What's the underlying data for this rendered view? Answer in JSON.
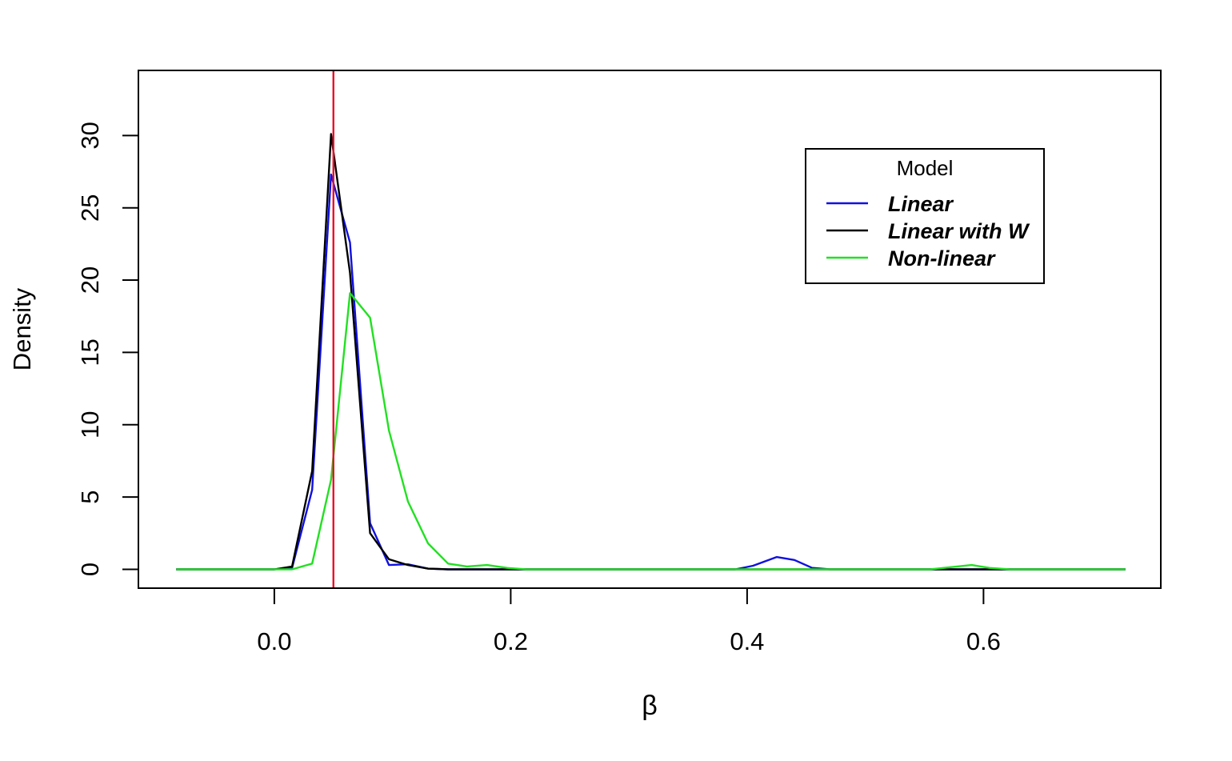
{
  "chart_data": {
    "type": "line",
    "title": "",
    "xlabel": "β",
    "ylabel": "Density",
    "xlim": [
      -0.115,
      0.75
    ],
    "ylim": [
      -1.3,
      34.5
    ],
    "x_ticks": [
      0.0,
      0.2,
      0.4,
      0.6
    ],
    "x_tick_labels": [
      "0.0",
      "0.2",
      "0.4",
      "0.6"
    ],
    "y_ticks": [
      0,
      5,
      10,
      15,
      20,
      25,
      30
    ],
    "y_tick_labels": [
      "0",
      "5",
      "10",
      "15",
      "20",
      "25",
      "30"
    ],
    "grid": false,
    "legend": {
      "title": "Model",
      "placement": "top-right"
    },
    "vline": {
      "x": 0.05,
      "color": "#e8102a"
    },
    "series": [
      {
        "name": "Linear",
        "color": "#1010e0",
        "x": [
          -0.083,
          0.0,
          0.015,
          0.032,
          0.048,
          0.064,
          0.081,
          0.097,
          0.113,
          0.13,
          0.147,
          0.163,
          0.2,
          0.3,
          0.39,
          0.405,
          0.425,
          0.44,
          0.455,
          0.47,
          0.55,
          0.6,
          0.65,
          0.72
        ],
        "y": [
          0,
          0,
          0.1,
          5.5,
          27.3,
          22.6,
          3.2,
          0.3,
          0.35,
          0.05,
          0.0,
          0.0,
          0.0,
          0.0,
          0.0,
          0.25,
          0.85,
          0.65,
          0.1,
          0.0,
          0.0,
          0.0,
          0.0,
          0.0
        ]
      },
      {
        "name": "Linear with W",
        "color": "#000000",
        "x": [
          -0.083,
          0.0,
          0.015,
          0.032,
          0.048,
          0.064,
          0.081,
          0.097,
          0.113,
          0.13,
          0.147,
          0.2,
          0.3,
          0.4,
          0.5,
          0.6,
          0.65,
          0.72
        ],
        "y": [
          0,
          0,
          0.2,
          6.8,
          30.1,
          20.5,
          2.5,
          0.7,
          0.3,
          0.05,
          0.0,
          0.0,
          0.0,
          0.0,
          0.0,
          0.0,
          0.0,
          0.0
        ]
      },
      {
        "name": "Non-linear",
        "color": "#22e022",
        "x": [
          -0.083,
          0.0,
          0.015,
          0.032,
          0.048,
          0.064,
          0.081,
          0.097,
          0.113,
          0.13,
          0.147,
          0.163,
          0.18,
          0.197,
          0.213,
          0.3,
          0.4,
          0.5,
          0.555,
          0.572,
          0.59,
          0.605,
          0.622,
          0.65,
          0.72
        ],
        "y": [
          0,
          0,
          0.0,
          0.4,
          6.2,
          19.1,
          17.4,
          9.6,
          4.7,
          1.8,
          0.4,
          0.2,
          0.3,
          0.1,
          0.0,
          0.0,
          0.0,
          0.0,
          0.0,
          0.15,
          0.3,
          0.1,
          0.0,
          0.0,
          0.0
        ]
      }
    ]
  }
}
